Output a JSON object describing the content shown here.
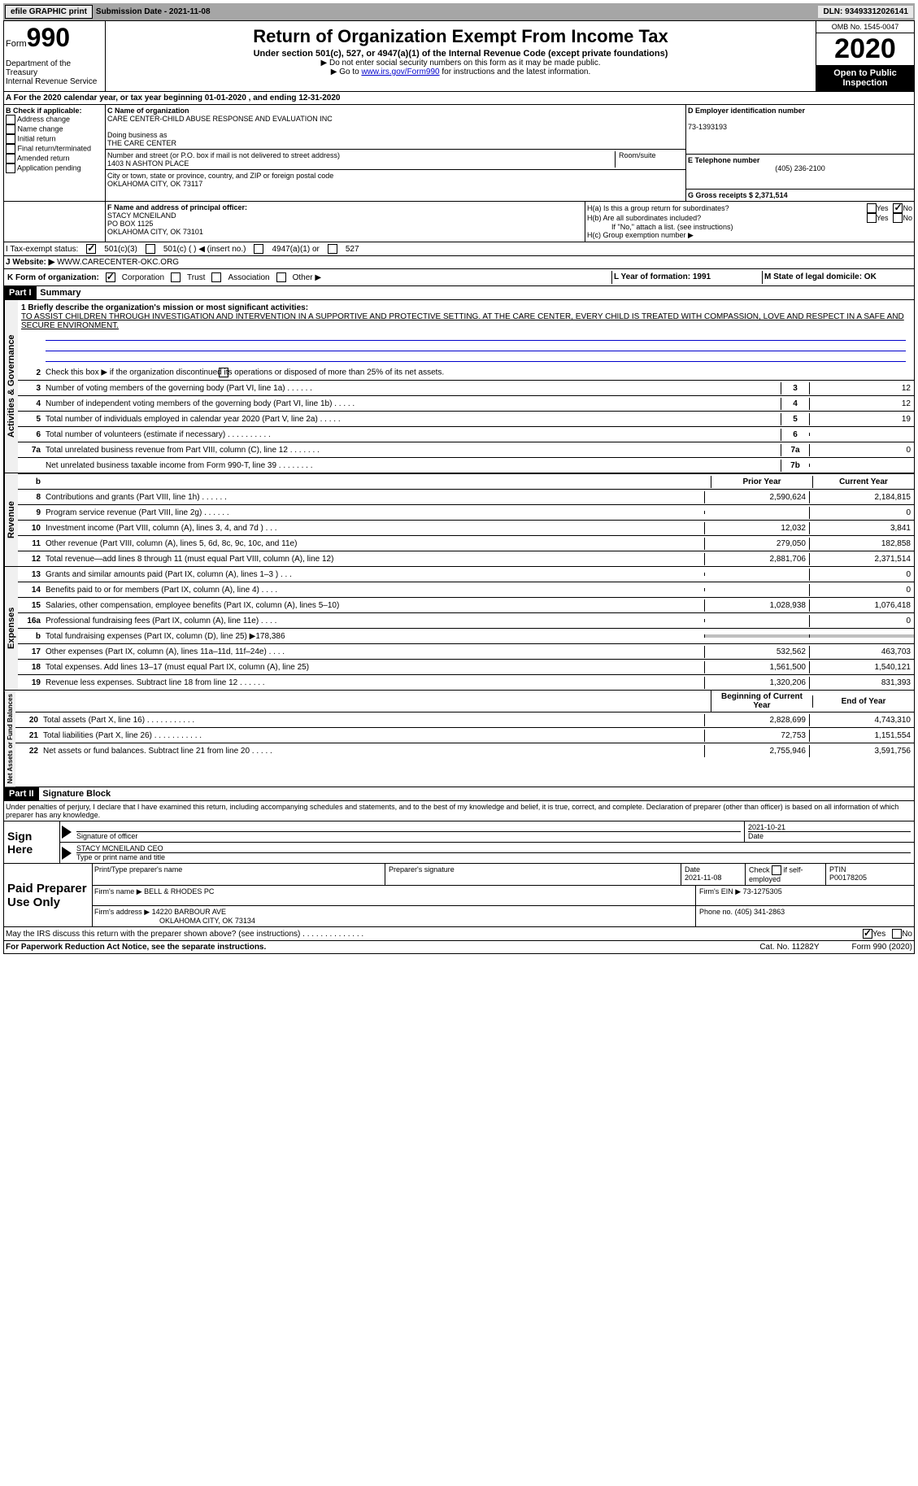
{
  "top_bar": {
    "efile": "efile GRAPHIC print",
    "submission_label": "Submission Date - 2021-11-08",
    "dln": "DLN: 93493312026141"
  },
  "header": {
    "form_label": "Form",
    "form_num": "990",
    "dept": "Department of the Treasury\nInternal Revenue Service",
    "title": "Return of Organization Exempt From Income Tax",
    "subtitle": "Under section 501(c), 527, or 4947(a)(1) of the Internal Revenue Code (except private foundations)",
    "note1": "▶ Do not enter social security numbers on this form as it may be made public.",
    "note2_pre": "▶ Go to ",
    "note2_link": "www.irs.gov/Form990",
    "note2_post": " for instructions and the latest information.",
    "omb": "OMB No. 1545-0047",
    "year": "2020",
    "open_public": "Open to Public Inspection"
  },
  "period": {
    "text": "A For the 2020 calendar year, or tax year beginning 01-01-2020    , and ending 12-31-2020"
  },
  "section_b": {
    "label": "B Check if applicable:",
    "items": [
      "Address change",
      "Name change",
      "Initial return",
      "Final return/terminated",
      "Amended return",
      "Application pending"
    ]
  },
  "section_c": {
    "name_label": "C Name of organization",
    "name": "CARE CENTER-CHILD ABUSE RESPONSE AND EVALUATION INC",
    "dba_label": "Doing business as",
    "dba": "THE CARE CENTER",
    "addr_label": "Number and street (or P.O. box if mail is not delivered to street address)",
    "addr": "1403 N ASHTON PLACE",
    "room_label": "Room/suite",
    "city_label": "City or town, state or province, country, and ZIP or foreign postal code",
    "city": "OKLAHOMA CITY, OK  73117"
  },
  "section_d": {
    "label": "D Employer identification number",
    "value": "73-1393193"
  },
  "section_e": {
    "label": "E Telephone number",
    "value": "(405) 236-2100"
  },
  "section_g": {
    "label": "G Gross receipts $ 2,371,514"
  },
  "section_f": {
    "label": "F Name and address of principal officer:",
    "name": "STACY MCNEILAND",
    "addr1": "PO BOX 1125",
    "addr2": "OKLAHOMA CITY, OK  73101"
  },
  "section_h": {
    "ha": "H(a)  Is this a group return for subordinates?",
    "hb": "H(b)  Are all subordinates included?",
    "hb_note": "If \"No,\" attach a list. (see instructions)",
    "hc": "H(c)  Group exemption number ▶",
    "yes": "Yes",
    "no": "No"
  },
  "row_i": {
    "label": "I   Tax-exempt status:",
    "opt1": "501(c)(3)",
    "opt2": "501(c) (   ) ◀ (insert no.)",
    "opt3": "4947(a)(1) or",
    "opt4": "527"
  },
  "row_j": {
    "label": "J   Website: ▶",
    "value": "WWW.CARECENTER-OKC.ORG"
  },
  "row_k": {
    "label": "K Form of organization:",
    "opts": [
      "Corporation",
      "Trust",
      "Association",
      "Other ▶"
    ]
  },
  "row_lm": {
    "l": "L Year of formation: 1991",
    "m": "M State of legal domicile: OK"
  },
  "part1": {
    "header": "Part I",
    "title": "Summary",
    "mission_label": "1     Briefly describe the organization's mission or most significant activities:",
    "mission": "TO ASSIST CHILDREN THROUGH INVESTIGATION AND INTERVENTION IN A SUPPORTIVE AND PROTECTIVE SETTING. AT THE CARE CENTER, EVERY CHILD IS TREATED WITH COMPASSION, LOVE AND RESPECT IN A SAFE AND SECURE ENVIRONMENT.",
    "line2": "Check this box ▶         if the organization discontinued its operations or disposed of more than 25% of its net assets.",
    "gov_label": "Activities & Governance",
    "lines_gov": [
      {
        "num": "3",
        "text": "Number of voting members of the governing body (Part VI, line 1a)   .     .     .     .     .     .",
        "box": "3",
        "val": "12"
      },
      {
        "num": "4",
        "text": "Number of independent voting members of the governing body (Part VI, line 1b)   .     .     .     .     .",
        "box": "4",
        "val": "12"
      },
      {
        "num": "5",
        "text": "Total number of individuals employed in calendar year 2020 (Part V, line 2a)   .     .     .     .     .",
        "box": "5",
        "val": "19"
      },
      {
        "num": "6",
        "text": "Total number of volunteers (estimate if necessary)   .     .     .     .     .     .     .     .     .     .",
        "box": "6",
        "val": ""
      },
      {
        "num": "7a",
        "text": "Total unrelated business revenue from Part VIII, column (C), line 12   .     .     .     .     .     .     .",
        "box": "7a",
        "val": "0"
      },
      {
        "num": "",
        "text": "Net unrelated business taxable income from Form 990-T, line 39   .     .     .     .     .     .     .     .",
        "box": "7b",
        "val": ""
      }
    ],
    "col_prior": "Prior Year",
    "col_current": "Current Year",
    "rev_label": "Revenue",
    "lines_rev": [
      {
        "num": "8",
        "text": "Contributions and grants (Part VIII, line 1h)   .     .     .     .     .     .",
        "prior": "2,590,624",
        "current": "2,184,815"
      },
      {
        "num": "9",
        "text": "Program service revenue (Part VIII, line 2g)    .     .     .     .     .     .",
        "prior": "",
        "current": "0"
      },
      {
        "num": "10",
        "text": "Investment income (Part VIII, column (A), lines 3, 4, and 7d )   .     .     .",
        "prior": "12,032",
        "current": "3,841"
      },
      {
        "num": "11",
        "text": "Other revenue (Part VIII, column (A), lines 5, 6d, 8c, 9c, 10c, and 11e)",
        "prior": "279,050",
        "current": "182,858"
      },
      {
        "num": "12",
        "text": "Total revenue—add lines 8 through 11 (must equal Part VIII, column (A), line 12)",
        "prior": "2,881,706",
        "current": "2,371,514"
      }
    ],
    "exp_label": "Expenses",
    "lines_exp": [
      {
        "num": "13",
        "text": "Grants and similar amounts paid (Part IX, column (A), lines 1–3 )   .     .     .",
        "prior": "",
        "current": "0"
      },
      {
        "num": "14",
        "text": "Benefits paid to or for members (Part IX, column (A), line 4)   .     .     .     .",
        "prior": "",
        "current": "0"
      },
      {
        "num": "15",
        "text": "Salaries, other compensation, employee benefits (Part IX, column (A), lines 5–10)",
        "prior": "1,028,938",
        "current": "1,076,418"
      },
      {
        "num": "16a",
        "text": "Professional fundraising fees (Part IX, column (A), line 11e)    .     .     .     .",
        "prior": "",
        "current": "0"
      },
      {
        "num": "b",
        "text": "Total fundraising expenses (Part IX, column (D), line 25) ▶178,386",
        "prior": "shaded",
        "current": "shaded"
      },
      {
        "num": "17",
        "text": "Other expenses (Part IX, column (A), lines 11a–11d, 11f–24e)    .     .     .     .",
        "prior": "532,562",
        "current": "463,703"
      },
      {
        "num": "18",
        "text": "Total expenses. Add lines 13–17 (must equal Part IX, column (A), line 25)",
        "prior": "1,561,500",
        "current": "1,540,121"
      },
      {
        "num": "19",
        "text": "Revenue less expenses. Subtract line 18 from line 12   .     .     .     .     .     .",
        "prior": "1,320,206",
        "current": "831,393"
      }
    ],
    "col_begin": "Beginning of Current Year",
    "col_end": "End of Year",
    "net_label": "Net Assets or Fund Balances",
    "lines_net": [
      {
        "num": "20",
        "text": "Total assets (Part X, line 16)   .     .     .     .     .     .     .     .     .     .     .",
        "prior": "2,828,699",
        "current": "4,743,310"
      },
      {
        "num": "21",
        "text": "Total liabilities (Part X, line 26)   .     .     .     .     .     .     .     .     .     .     .",
        "prior": "72,753",
        "current": "1,151,554"
      },
      {
        "num": "22",
        "text": "Net assets or fund balances. Subtract line 21 from line 20   .     .     .     .     .",
        "prior": "2,755,946",
        "current": "3,591,756"
      }
    ]
  },
  "part2": {
    "header": "Part II",
    "title": "Signature Block",
    "declaration": "Under penalties of perjury, I declare that I have examined this return, including accompanying schedules and statements, and to the best of my knowledge and belief, it is true, correct, and complete. Declaration of preparer (other than officer) is based on all information of which preparer has any knowledge."
  },
  "sign": {
    "label": "Sign Here",
    "sig_label": "Signature of officer",
    "date_label": "Date",
    "date": "2021-10-21",
    "name_label": "Type or print name and title",
    "name": "STACY MCNEILAND  CEO"
  },
  "paid": {
    "label": "Paid Preparer Use Only",
    "col1": "Print/Type preparer's name",
    "col2": "Preparer's signature",
    "col3": "Date",
    "date": "2021-11-08",
    "col4_pre": "Check",
    "col4_post": "if self-employed",
    "col5": "PTIN",
    "ptin": "P00178205",
    "firm_name_label": "Firm's name      ▶",
    "firm_name": "BELL & RHODES PC",
    "firm_ein_label": "Firm's EIN ▶",
    "firm_ein": "73-1275305",
    "firm_addr_label": "Firm's address ▶",
    "firm_addr": "14220 BARBOUR AVE",
    "firm_city": "OKLAHOMA CITY, OK  73134",
    "phone_label": "Phone no.",
    "phone": "(405) 341-2863"
  },
  "discuss": {
    "text": "May the IRS discuss this return with the preparer shown above? (see instructions)    .     .     .     .     .     .     .     .     .     .     .     .     .     .",
    "yes": "Yes",
    "no": "No"
  },
  "footer": {
    "left": "For Paperwork Reduction Act Notice, see the separate instructions.",
    "mid": "Cat. No. 11282Y",
    "right": "Form 990 (2020)"
  }
}
